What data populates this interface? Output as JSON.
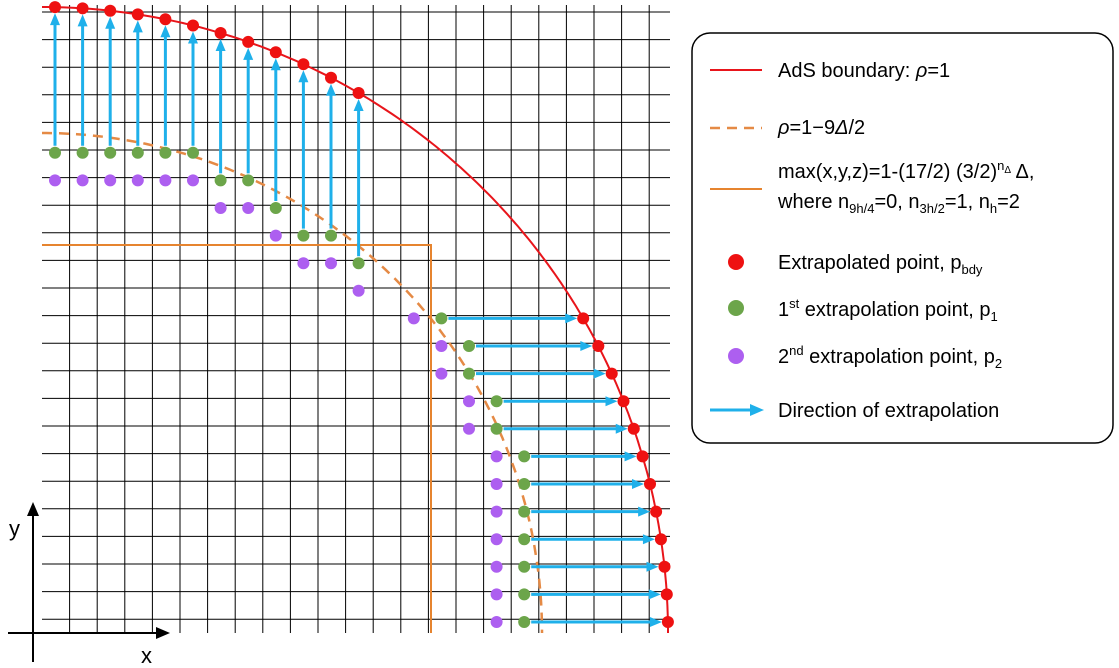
{
  "axes": {
    "x_label": "x",
    "y_label": "y"
  },
  "colors": {
    "grid": "#000000",
    "ads_boundary": "#e8151b",
    "dashed_circle": "#e58a45",
    "box": "#e6842f",
    "extrapolated": "#ee1111",
    "first_point": "#6ca54a",
    "second_point": "#ad5ff0",
    "arrow": "#1fb0ea"
  },
  "legend": {
    "ads_prefix": "AdS boundary: ",
    "ads_rho": "ρ",
    "ads_suffix": "=1",
    "dashed_rho": "ρ",
    "dashed_mid": "=1−9",
    "dashed_delta": "Δ",
    "dashed_suffix": "/2",
    "box_line1_main": "max(x,y,z)=1-(17/2) (3/2)",
    "box_line1_sup_n": "n",
    "box_line1_sup_delta": "Δ",
    "box_line1_tail": " Δ,",
    "box_line2_where": "where n",
    "box_line2_sub1": "9h/4",
    "box_line2_mid1": "=0, n",
    "box_line2_sub2": "3h/2",
    "box_line2_mid2": "=1, n",
    "box_line2_sub3": "h",
    "box_line2_end": "=2",
    "extrap_main": "Extrapolated point, p",
    "extrap_sub": "bdy",
    "first_num": "1",
    "first_sup": "st",
    "first_main": " extrapolation point, p",
    "first_sub": "1",
    "second_num": "2",
    "second_sup": "nd",
    "second_main": " extrapolation point, p",
    "second_sub": "2",
    "direction": "Direction of extrapolation"
  }
}
